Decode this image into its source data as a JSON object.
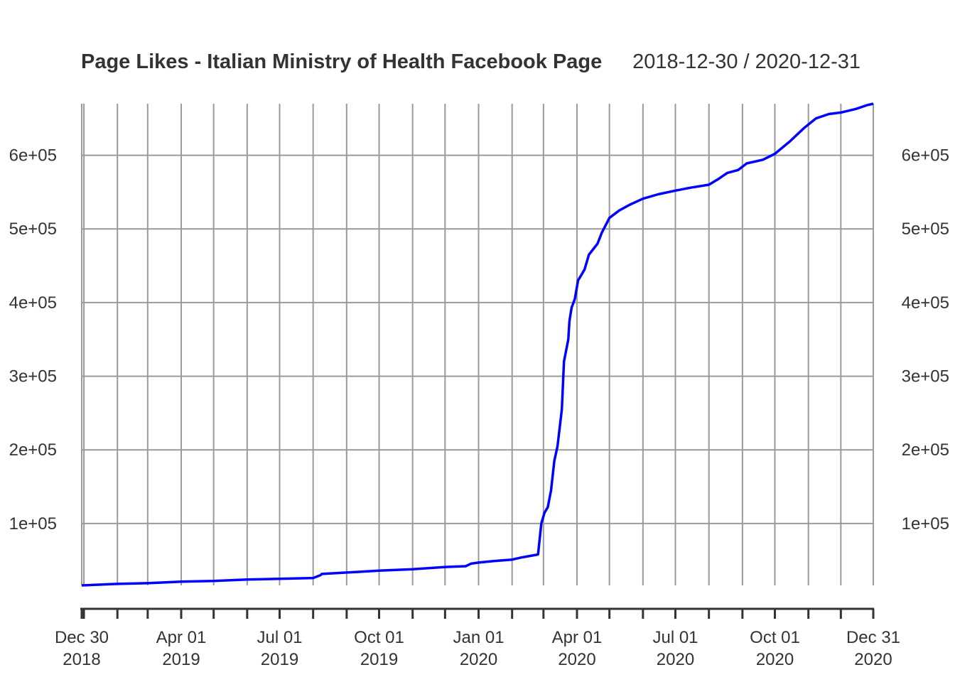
{
  "chart_data": {
    "type": "line",
    "title": "Page Likes - Italian Ministry of Health Facebook Page",
    "date_range": "2018-12-30 / 2020-12-31",
    "xlabel": "",
    "ylabel": "",
    "xlim": [
      "2018-12-30",
      "2020-12-31"
    ],
    "ylim": [
      16000,
      670000
    ],
    "grid": true,
    "y_ticks": [
      {
        "value": 100000,
        "label": "1e+05"
      },
      {
        "value": 200000,
        "label": "2e+05"
      },
      {
        "value": 300000,
        "label": "3e+05"
      },
      {
        "value": 400000,
        "label": "4e+05"
      },
      {
        "value": 500000,
        "label": "5e+05"
      },
      {
        "value": 600000,
        "label": "6e+05"
      }
    ],
    "x_ticks_labeled": [
      {
        "date": "2018-12-30",
        "line1": "Dec 30",
        "line2": "2018"
      },
      {
        "date": "2019-04-01",
        "line1": "Apr 01",
        "line2": "2019"
      },
      {
        "date": "2019-07-01",
        "line1": "Jul 01",
        "line2": "2019"
      },
      {
        "date": "2019-10-01",
        "line1": "Oct 01",
        "line2": "2019"
      },
      {
        "date": "2020-01-01",
        "line1": "Jan 01",
        "line2": "2020"
      },
      {
        "date": "2020-04-01",
        "line1": "Apr 01",
        "line2": "2020"
      },
      {
        "date": "2020-07-01",
        "line1": "Jul 01",
        "line2": "2020"
      },
      {
        "date": "2020-10-01",
        "line1": "Oct 01",
        "line2": "2020"
      },
      {
        "date": "2020-12-31",
        "line1": "Dec 31",
        "line2": "2020"
      }
    ],
    "x_ticks_minor": [
      "2019-01-01",
      "2019-02-01",
      "2019-03-01",
      "2019-05-01",
      "2019-06-01",
      "2019-08-01",
      "2019-09-01",
      "2019-11-01",
      "2019-12-01",
      "2020-02-01",
      "2020-03-01",
      "2020-05-01",
      "2020-06-01",
      "2020-08-01",
      "2020-09-01",
      "2020-11-01",
      "2020-12-01"
    ],
    "series": [
      {
        "color": "#0000ff",
        "points": [
          [
            "2018-12-30",
            16000
          ],
          [
            "2019-02-01",
            18000
          ],
          [
            "2019-03-01",
            19000
          ],
          [
            "2019-04-01",
            21000
          ],
          [
            "2019-05-01",
            22000
          ],
          [
            "2019-06-01",
            24000
          ],
          [
            "2019-07-01",
            25000
          ],
          [
            "2019-08-01",
            26000
          ],
          [
            "2019-08-08",
            30000
          ],
          [
            "2019-08-09",
            31500
          ],
          [
            "2019-09-01",
            33500
          ],
          [
            "2019-10-01",
            36000
          ],
          [
            "2019-11-01",
            38000
          ],
          [
            "2019-12-01",
            41000
          ],
          [
            "2019-12-20",
            42000
          ],
          [
            "2019-12-25",
            45500
          ],
          [
            "2020-01-01",
            47000
          ],
          [
            "2020-01-15",
            49000
          ],
          [
            "2020-02-01",
            51000
          ],
          [
            "2020-02-10",
            54000
          ],
          [
            "2020-02-25",
            58000
          ],
          [
            "2020-02-28",
            100000
          ],
          [
            "2020-03-02",
            115000
          ],
          [
            "2020-03-05",
            122000
          ],
          [
            "2020-03-08",
            145000
          ],
          [
            "2020-03-11",
            185000
          ],
          [
            "2020-03-14",
            205000
          ],
          [
            "2020-03-18",
            255000
          ],
          [
            "2020-03-20",
            320000
          ],
          [
            "2020-03-24",
            350000
          ],
          [
            "2020-03-25",
            375000
          ],
          [
            "2020-03-27",
            393000
          ],
          [
            "2020-03-30",
            405000
          ],
          [
            "2020-04-02",
            430000
          ],
          [
            "2020-04-08",
            445000
          ],
          [
            "2020-04-12",
            465000
          ],
          [
            "2020-04-20",
            480000
          ],
          [
            "2020-04-24",
            495000
          ],
          [
            "2020-05-01",
            515000
          ],
          [
            "2020-05-10",
            525000
          ],
          [
            "2020-05-20",
            533000
          ],
          [
            "2020-06-01",
            541000
          ],
          [
            "2020-06-15",
            547000
          ],
          [
            "2020-07-01",
            552000
          ],
          [
            "2020-07-15",
            556000
          ],
          [
            "2020-08-01",
            560000
          ],
          [
            "2020-08-10",
            568000
          ],
          [
            "2020-08-18",
            576000
          ],
          [
            "2020-08-28",
            580000
          ],
          [
            "2020-09-05",
            589000
          ],
          [
            "2020-09-20",
            594000
          ],
          [
            "2020-10-01",
            602000
          ],
          [
            "2020-10-15",
            619000
          ],
          [
            "2020-10-28",
            637000
          ],
          [
            "2020-11-08",
            650000
          ],
          [
            "2020-11-20",
            656000
          ],
          [
            "2020-12-01",
            658000
          ],
          [
            "2020-12-15",
            663000
          ],
          [
            "2020-12-25",
            668000
          ],
          [
            "2020-12-31",
            670000
          ]
        ]
      }
    ]
  }
}
